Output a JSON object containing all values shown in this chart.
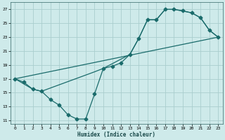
{
  "xlabel": "Humidex (Indice chaleur)",
  "bg_color": "#ceeaea",
  "grid_color": "#aacece",
  "line_color": "#1a6b6b",
  "xlim": [
    -0.5,
    23.5
  ],
  "ylim": [
    10.5,
    28.0
  ],
  "xticks": [
    0,
    1,
    2,
    3,
    4,
    5,
    6,
    7,
    8,
    9,
    10,
    11,
    12,
    13,
    14,
    15,
    16,
    17,
    18,
    19,
    20,
    21,
    22,
    23
  ],
  "yticks": [
    11,
    13,
    15,
    17,
    19,
    21,
    23,
    25,
    27
  ],
  "curve1_x": [
    0,
    1,
    2,
    3,
    4,
    5,
    6,
    7,
    8,
    9,
    10,
    11,
    12,
    13,
    14,
    15,
    16,
    17,
    18,
    19,
    20,
    21,
    22,
    23
  ],
  "curve1_y": [
    17,
    16.5,
    15.5,
    15.2,
    14.0,
    13.2,
    11.8,
    11.2,
    11.2,
    14.8,
    18.5,
    18.8,
    19.3,
    20.5,
    22.8,
    25.5,
    25.5,
    27.0,
    27.0,
    26.8,
    26.5,
    25.8,
    24.0,
    23.0
  ],
  "curve2_x": [
    0,
    2,
    3,
    9,
    10,
    13,
    14,
    15,
    16,
    17,
    18,
    20,
    21,
    22,
    23
  ],
  "curve2_y": [
    17,
    15.5,
    15.2,
    18.0,
    18.5,
    20.5,
    22.8,
    25.5,
    25.5,
    27.0,
    27.0,
    26.5,
    25.8,
    24.0,
    23.0
  ],
  "curve3_x": [
    0,
    23
  ],
  "curve3_y": [
    17,
    23.0
  ],
  "marker": "D",
  "markersize": 2.5,
  "linewidth": 0.9
}
